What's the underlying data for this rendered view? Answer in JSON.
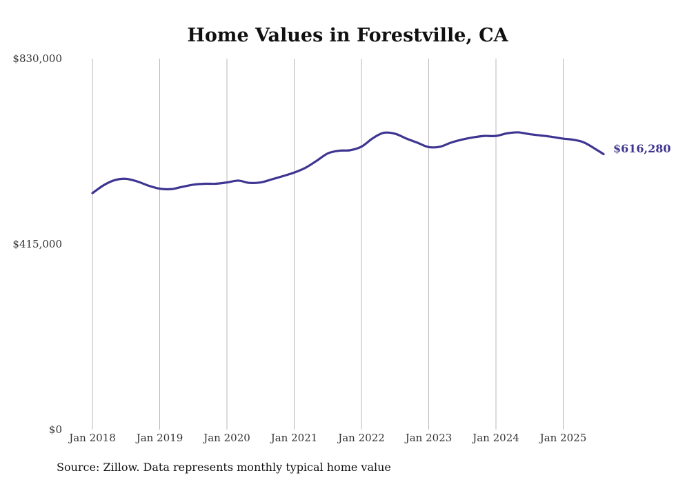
{
  "chart_data": {
    "type": "line",
    "title": "Home Values in Forestville, CA",
    "xlabel": "",
    "ylabel": "",
    "ylim": [
      0,
      830000
    ],
    "yticks": [
      0,
      415000,
      830000
    ],
    "ytick_labels": [
      "$0",
      "$415,000",
      "$830,000"
    ],
    "xticks": [
      2018,
      2019,
      2020,
      2021,
      2022,
      2023,
      2024,
      2025
    ],
    "xtick_labels": [
      "Jan 2018",
      "Jan 2019",
      "Jan 2020",
      "Jan 2021",
      "Jan 2022",
      "Jan 2023",
      "Jan 2024",
      "Jan 2025"
    ],
    "xlim": [
      2018,
      2025.6
    ],
    "grid": "vertical",
    "series": [
      {
        "name": "Typical home value",
        "color": "#3d3591",
        "x": [
          2018.0,
          2018.17,
          2018.33,
          2018.5,
          2018.67,
          2018.83,
          2019.0,
          2019.17,
          2019.33,
          2019.5,
          2019.67,
          2019.83,
          2020.0,
          2020.17,
          2020.33,
          2020.5,
          2020.67,
          2020.83,
          2021.0,
          2021.17,
          2021.33,
          2021.5,
          2021.67,
          2021.83,
          2022.0,
          2022.17,
          2022.33,
          2022.5,
          2022.67,
          2022.83,
          2023.0,
          2023.17,
          2023.33,
          2023.5,
          2023.67,
          2023.83,
          2024.0,
          2024.17,
          2024.33,
          2024.5,
          2024.67,
          2024.83,
          2025.0,
          2025.17,
          2025.33,
          2025.6
        ],
        "values": [
          529000,
          547000,
          558000,
          561000,
          555000,
          546000,
          539000,
          538000,
          543000,
          548000,
          550000,
          550000,
          553000,
          557000,
          552000,
          553000,
          560000,
          567000,
          575000,
          586000,
          601000,
          618000,
          624000,
          625000,
          633000,
          652000,
          664000,
          662000,
          651000,
          642000,
          632000,
          633000,
          642000,
          649000,
          654000,
          657000,
          657000,
          663000,
          665000,
          661000,
          658000,
          655000,
          651000,
          648000,
          641000,
          616280
        ]
      }
    ],
    "end_label": "$616,280",
    "source_note": "Source: Zillow. Data represents monthly typical home value"
  }
}
